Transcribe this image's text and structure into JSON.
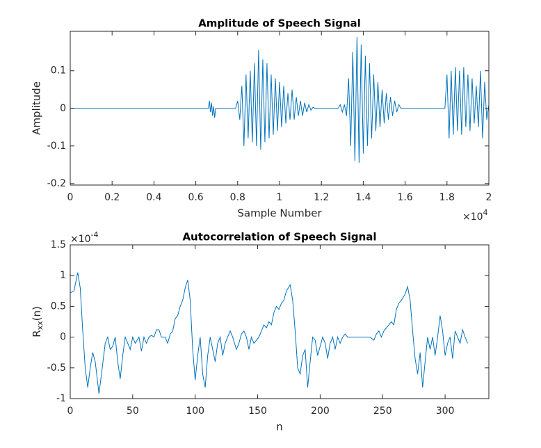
{
  "chart_data": [
    {
      "type": "line",
      "title": "Amplitude of Speech Signal",
      "xlabel": "Sample Number",
      "ylabel": "Amplitude",
      "x_multiplier": {
        "base": "×10",
        "power": "4"
      },
      "xlim": [
        0,
        2
      ],
      "xticks": [
        0,
        0.2,
        0.4,
        0.6,
        0.8,
        1,
        1.2,
        1.4,
        1.6,
        1.8,
        2
      ],
      "ylim": [
        -0.204,
        0.205
      ],
      "yticks": [
        -0.2,
        -0.1,
        0,
        0.1
      ],
      "color": "#0072bd",
      "x": [
        0,
        0.66,
        0.665,
        0.67,
        0.675,
        0.68,
        0.685,
        0.69,
        0.695,
        0.7,
        0.79,
        0.8,
        0.81,
        0.82,
        0.83,
        0.84,
        0.85,
        0.86,
        0.87,
        0.88,
        0.89,
        0.9,
        0.91,
        0.92,
        0.93,
        0.94,
        0.95,
        0.96,
        0.97,
        0.98,
        0.99,
        1.0,
        1.01,
        1.02,
        1.03,
        1.04,
        1.05,
        1.06,
        1.07,
        1.08,
        1.09,
        1.1,
        1.11,
        1.12,
        1.13,
        1.14,
        1.15,
        1.16,
        1.17,
        1.28,
        1.29,
        1.3,
        1.31,
        1.32,
        1.33,
        1.34,
        1.35,
        1.36,
        1.37,
        1.38,
        1.39,
        1.4,
        1.41,
        1.42,
        1.43,
        1.44,
        1.45,
        1.46,
        1.47,
        1.48,
        1.49,
        1.5,
        1.51,
        1.52,
        1.53,
        1.54,
        1.55,
        1.56,
        1.57,
        1.58,
        1.79,
        1.8,
        1.81,
        1.82,
        1.83,
        1.84,
        1.85,
        1.86,
        1.87,
        1.88,
        1.89,
        1.9,
        1.91,
        1.92,
        1.93,
        1.94,
        1.95,
        1.96,
        1.97,
        1.98,
        1.99,
        2.0
      ],
      "values": [
        0,
        0,
        0.02,
        -0.01,
        0.015,
        -0.02,
        0.005,
        -0.025,
        0,
        0,
        0,
        0.02,
        -0.03,
        0.06,
        -0.1,
        0.09,
        -0.08,
        0.1,
        -0.09,
        0.12,
        -0.1,
        0.155,
        -0.11,
        0.13,
        -0.09,
        0.12,
        -0.08,
        0.09,
        -0.07,
        0.08,
        -0.06,
        0.07,
        -0.05,
        0.06,
        -0.04,
        0.04,
        -0.03,
        0.05,
        -0.03,
        0.03,
        -0.02,
        0.02,
        -0.02,
        0.015,
        -0.01,
        0.01,
        -0.005,
        0.003,
        0,
        0,
        0.01,
        -0.01,
        0.01,
        -0.02,
        0.08,
        -0.1,
        0.15,
        -0.14,
        0.19,
        -0.145,
        0.17,
        -0.12,
        0.14,
        -0.1,
        0.12,
        -0.08,
        0.09,
        -0.06,
        0.07,
        -0.05,
        0.05,
        -0.04,
        0.04,
        -0.03,
        0.03,
        -0.02,
        0.02,
        -0.01,
        0.01,
        0,
        0,
        0.09,
        -0.08,
        0.1,
        -0.07,
        0.11,
        -0.06,
        0.1,
        -0.07,
        0.11,
        -0.05,
        0.09,
        -0.06,
        0.08,
        -0.04,
        0.06,
        -0.05,
        0.1,
        -0.08,
        0.07,
        -0.03,
        0.01
      ]
    },
    {
      "type": "line",
      "title": "Autocorrelation of Speech Signal",
      "xlabel": "n",
      "ylabel": {
        "base": "R",
        "sub": "xx",
        "rest": "(n)"
      },
      "y_multiplier": {
        "base": "×10",
        "power": "-4"
      },
      "xlim": [
        0,
        335
      ],
      "xticks": [
        0,
        50,
        100,
        150,
        200,
        250,
        300
      ],
      "ylim": [
        -1,
        1.5
      ],
      "yticks": [
        -1,
        -0.5,
        0,
        0.5,
        1,
        1.5
      ],
      "color": "#0072bd",
      "x": [
        0,
        3,
        6,
        8,
        10,
        12,
        14,
        16,
        18,
        20,
        23,
        25,
        28,
        30,
        32,
        34,
        36,
        38,
        40,
        42,
        44,
        46,
        48,
        50,
        52,
        55,
        57,
        59,
        61,
        63,
        65,
        67,
        69,
        71,
        73,
        76,
        78,
        80,
        82,
        84,
        86,
        88,
        90,
        92,
        94,
        96,
        98,
        100,
        102,
        104,
        106,
        108,
        110,
        112,
        114,
        116,
        118,
        120,
        122,
        124,
        126,
        128,
        130,
        133,
        135,
        137,
        139,
        141,
        143,
        145,
        147,
        149,
        151,
        153,
        155,
        157,
        159,
        161,
        163,
        165,
        167,
        169,
        171,
        173,
        176,
        178,
        180,
        182,
        184,
        186,
        188,
        190,
        192,
        194,
        196,
        198,
        200,
        202,
        204,
        206,
        208,
        210,
        212,
        214,
        216,
        218,
        220,
        222,
        240,
        243,
        245,
        247,
        249,
        251,
        253,
        255,
        257,
        259,
        261,
        263,
        265,
        268,
        270,
        272,
        274,
        276,
        278,
        280,
        282,
        284,
        286,
        288,
        290,
        292,
        294,
        296,
        298,
        300,
        302,
        304,
        306,
        308,
        310,
        312,
        314,
        316,
        318
      ],
      "values": [
        0.72,
        0.75,
        1.05,
        0.8,
        0.1,
        -0.5,
        -0.82,
        -0.5,
        -0.25,
        -0.4,
        -0.92,
        -0.6,
        -0.1,
        0,
        -0.2,
        -0.15,
        0,
        -0.4,
        -0.68,
        -0.3,
        0,
        -0.1,
        -0.2,
        0,
        -0.1,
        0,
        -0.23,
        0,
        -0.1,
        0,
        0.03,
        0,
        0.12,
        0.12,
        0,
        0,
        -0.1,
        0.05,
        0.1,
        0.3,
        0.35,
        0.5,
        0.6,
        0.8,
        0.93,
        0.6,
        -0.2,
        -0.7,
        -0.3,
        0,
        -0.6,
        -0.82,
        -0.3,
        0,
        -0.2,
        -0.4,
        -0.1,
        0,
        -0.3,
        -0.1,
        0,
        0.1,
        0,
        -0.2,
        -0.1,
        0.05,
        0.1,
        0,
        -0.2,
        0,
        -0.1,
        -0.05,
        0,
        0.1,
        0.2,
        0.15,
        0.25,
        0.2,
        0.4,
        0.5,
        0.45,
        0.55,
        0.6,
        0.75,
        0.85,
        0.6,
        0.1,
        -0.5,
        -0.6,
        -0.3,
        -0.2,
        -0.82,
        -0.4,
        0,
        -0.05,
        -0.3,
        -0.15,
        0,
        -0.1,
        -0.35,
        -0.1,
        0,
        -0.2,
        0,
        -0.1,
        0,
        0.05,
        0,
        0,
        -0.05,
        0.05,
        0.1,
        0,
        0.1,
        0.15,
        0.2,
        0.25,
        0.2,
        0.45,
        0.55,
        0.6,
        0.7,
        0.82,
        0.6,
        0.1,
        -0.35,
        -0.6,
        -0.25,
        -0.82,
        -0.4,
        0,
        -0.2,
        0,
        -0.3,
        0,
        0.35,
        0.1,
        -0.3,
        -0.1,
        0,
        -0.35,
        0.1,
        0,
        -0.1,
        0.12,
        0,
        -0.1
      ]
    }
  ]
}
